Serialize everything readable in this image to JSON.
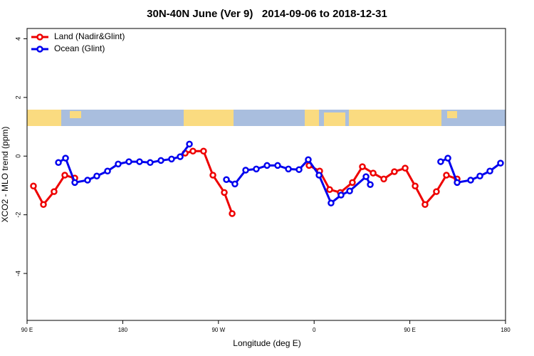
{
  "chart_data": {
    "type": "line",
    "title": "30N-40N June (Ver 9)   2014-09-06 to 2018-12-31",
    "x_label": "Longitude (deg E)",
    "y_label": "XCO2 - MLO trend (ppm)",
    "xlim": [
      90,
      540
    ],
    "xticks": [
      {
        "value": 90,
        "label": "90 E"
      },
      180,
      {
        "value": 270,
        "label": "90 W"
      },
      {
        "value": 360,
        "label": "0"
      },
      {
        "value": 450,
        "label": "90 E"
      },
      {
        "value": 540,
        "label": "180"
      }
    ],
    "ylim": [
      -5.6,
      4.35
    ],
    "yticks": [
      -4,
      -2,
      0,
      2,
      4
    ],
    "legend": "top-left",
    "series": [
      {
        "name": "Land (Nadir&Glint)",
        "color": "#ee0000",
        "x": [
          96,
          105.4,
          115.4,
          125.5,
          134.9,
          null,
          238.7,
          246,
          256,
          264.8,
          275.5,
          282.9,
          null,
          355.2,
          365.2,
          374.6,
          384.6,
          396,
          405.4,
          415.5,
          425.5,
          435.5,
          445.6,
          455,
          464.3,
          475,
          484.4,
          494.5
        ],
        "values": [
          -1.02,
          -1.65,
          -1.21,
          -0.65,
          -0.75,
          null,
          0.1,
          0.17,
          0.17,
          -0.65,
          -1.24,
          -1.96,
          null,
          -0.32,
          -0.51,
          -1.14,
          -1.24,
          -0.9,
          -0.36,
          -0.58,
          -0.78,
          -0.53,
          -0.41,
          -1.02,
          -1.65,
          -1.21,
          -0.65,
          -0.78
        ]
      },
      {
        "name": "Ocean (Glint)",
        "color": "#0000ee",
        "x": [
          119.5,
          126.2,
          134.9,
          146.9,
          155.6,
          165.7,
          175.7,
          185.8,
          195.8,
          205.8,
          215.9,
          225.9,
          234,
          242.7,
          null,
          277.5,
          285.5,
          295.6,
          305.6,
          315.7,
          325.7,
          335.8,
          345.8,
          354.5,
          364.6,
          375.9,
          385.3,
          393.4,
          408.8,
          412.8,
          null,
          479,
          485.8,
          494.5,
          507.2,
          515.9,
          525.3,
          535.3
        ],
        "values": [
          -0.22,
          -0.07,
          -0.9,
          -0.82,
          -0.68,
          -0.51,
          -0.27,
          -0.19,
          -0.19,
          -0.22,
          -0.15,
          -0.1,
          -0.02,
          0.41,
          null,
          -0.8,
          -0.95,
          -0.48,
          -0.44,
          -0.32,
          -0.32,
          -0.44,
          -0.46,
          -0.12,
          -0.65,
          -1.6,
          -1.33,
          -1.19,
          -0.7,
          -0.97,
          null,
          -0.19,
          -0.07,
          -0.9,
          -0.82,
          -0.68,
          -0.51,
          -0.24
        ]
      }
    ]
  }
}
